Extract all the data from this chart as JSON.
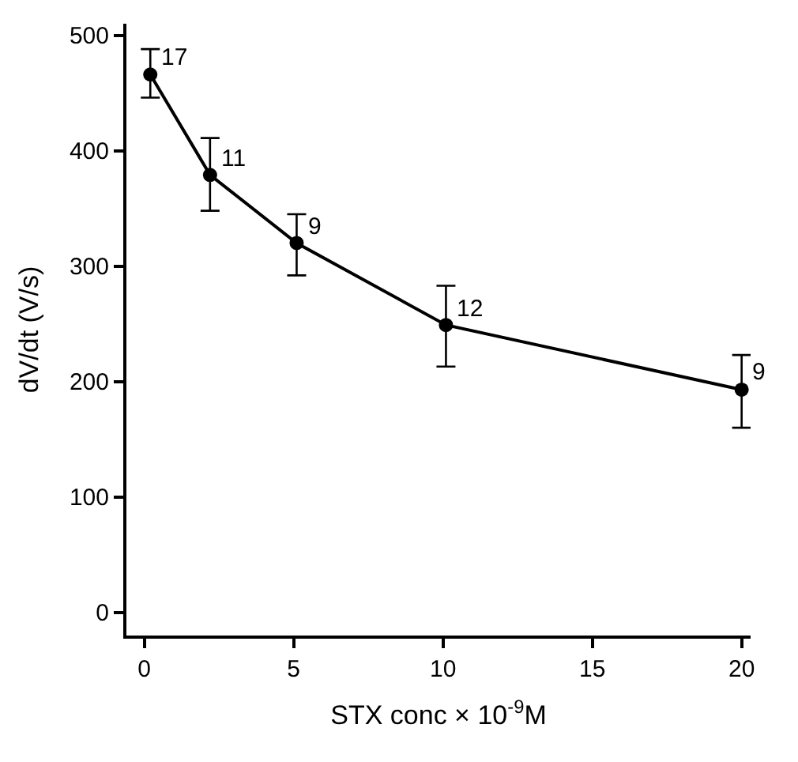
{
  "chart_data": {
    "type": "line",
    "xlabel": "STX conc × 10$^{-9}$M",
    "ylabel": "dV/dt (V/s)",
    "x": [
      0.2,
      2.2,
      5.1,
      10.1,
      20
    ],
    "series": [
      {
        "color": "#000000",
        "values": [
          466,
          379,
          320,
          249,
          193
        ],
        "errors": [
          [
            446,
            488
          ],
          [
            348,
            411
          ],
          [
            292,
            345
          ],
          [
            213,
            283
          ],
          [
            160,
            223
          ]
        ]
      }
    ],
    "xlim": [
      -0.6,
      20.3
    ],
    "ylim": [
      -20,
      510
    ],
    "xticks": [
      0,
      5,
      10,
      15,
      20
    ],
    "yticks": [
      0,
      100,
      200,
      300,
      400,
      500
    ],
    "marker": "circle",
    "line_style": "solid",
    "annotations": [
      {
        "text": "17",
        "x": 0.2,
        "y": 466
      },
      {
        "text": "11",
        "x": 2.2,
        "y": 379
      },
      {
        "text": "9",
        "x": 5.1,
        "y": 320
      },
      {
        "text": "12",
        "x": 10.1,
        "y": 249
      },
      {
        "text": "9",
        "x": 20,
        "y": 193
      }
    ]
  }
}
